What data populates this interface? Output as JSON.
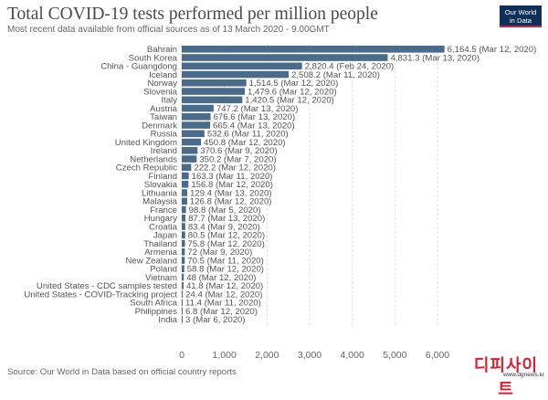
{
  "header": {
    "title": "Total COVID-19 tests performed per million people",
    "subtitle": "Most recent data available from official sources as of 13 March 2020 - 9.00GMT"
  },
  "logo": {
    "line1": "Our World",
    "line2": "in Data",
    "bg_color": "#0e2f57",
    "accent_color": "#c2284b"
  },
  "footer": {
    "source": "Source: Our World in Data based on official country reports"
  },
  "watermark": {
    "text": "디피사이트",
    "url": "www.dgnews.kr",
    "color": "#e01d2d"
  },
  "colors": {
    "bar": "#4a6b8a",
    "grid": "#dddddd",
    "text": "#555555"
  },
  "chart_data": {
    "type": "bar",
    "orientation": "horizontal",
    "categories": [
      "Bahrain",
      "South Korea",
      "China - Guangdong",
      "Iceland",
      "Norway",
      "Slovenia",
      "Italy",
      "Austria",
      "Taiwan",
      "Denmark",
      "Russia",
      "United Kingdom",
      "Ireland",
      "Netherlands",
      "Czech Republic",
      "Finland",
      "Slovakia",
      "Lithuania",
      "Malaysia",
      "France",
      "Hungary",
      "Croatia",
      "Japan",
      "Thailand",
      "Armenia",
      "New Zealand",
      "Poland",
      "Vietnam",
      "United States - CDC samples tested",
      "United States - COVID-Tracking project",
      "South Africa",
      "Philippines",
      "India"
    ],
    "values": [
      6164.5,
      4831.3,
      2820.4,
      2508.2,
      1514.5,
      1479.6,
      1420.5,
      747.2,
      676.6,
      665.4,
      532.6,
      450.8,
      370.6,
      350.2,
      222.2,
      163.3,
      156.8,
      129.4,
      126.8,
      98.8,
      87.7,
      83.4,
      80.5,
      75.8,
      72,
      70.5,
      58.8,
      48,
      41.8,
      24.4,
      11.4,
      6.8,
      3
    ],
    "value_labels": [
      "6,164.5 (Mar 12, 2020)",
      "4,831.3 (Mar 13, 2020)",
      "2,820.4 (Feb 24, 2020)",
      "2,508.2 (Mar 11, 2020)",
      "1,514.5 (Mar 12, 2020)",
      "1,479.6 (Mar 12, 2020)",
      "1,420.5 (Mar 12, 2020)",
      "747.2 (Mar 13, 2020)",
      "676.6 (Mar 13, 2020)",
      "665.4 (Mar 13, 2020)",
      "532.6 (Mar 11, 2020)",
      "450.8 (Mar 12, 2020)",
      "370.6 (Mar 9, 2020)",
      "350.2 (Mar 7, 2020)",
      "222.2 (Mar 12, 2020)",
      "163.3 (Mar 11, 2020)",
      "156.8 (Mar 12, 2020)",
      "129.4 (Mar 13, 2020)",
      "126.8 (Mar 12, 2020)",
      "98.8 (Mar 5, 2020)",
      "87.7 (Mar 13, 2020)",
      "83.4 (Mar 9, 2020)",
      "80.5 (Mar 12, 2020)",
      "75.8 (Mar 12, 2020)",
      "72 (Mar 9, 2020)",
      "70.5 (Mar 11, 2020)",
      "58.8 (Mar 12, 2020)",
      "48 (Mar 12, 2020)",
      "41.8 (Mar 12, 2020)",
      "24.4 (Mar 12, 2020)",
      "11.4 (Mar 11, 2020)",
      "6.8 (Mar 12, 2020)",
      "3 (Mar 6, 2020)"
    ],
    "x_ticks": [
      0,
      1000,
      2000,
      3000,
      4000,
      5000,
      6000
    ],
    "x_tick_labels": [
      "0",
      "1,000",
      "2,000",
      "3,000",
      "4,000",
      "5,000",
      "6,000"
    ],
    "xlim": [
      0,
      6300
    ],
    "grid": true,
    "legend": "none"
  }
}
